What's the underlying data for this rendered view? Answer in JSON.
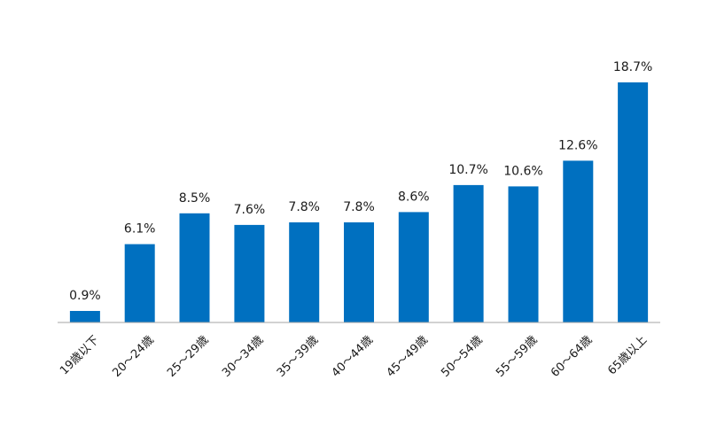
{
  "chart_data": {
    "type": "bar",
    "title": "",
    "xlabel": "",
    "ylabel": "",
    "categories": [
      "19歳以下",
      "20～24歳",
      "25～29歳",
      "30～34歳",
      "35～39歳",
      "40～44歳",
      "45～49歳",
      "50～54歳",
      "55～59歳",
      "60～64歳",
      "65歳以上"
    ],
    "values": [
      0.9,
      6.1,
      8.5,
      7.6,
      7.8,
      7.8,
      8.6,
      10.7,
      10.6,
      12.6,
      18.7
    ],
    "value_labels": [
      "0.9%",
      "6.1%",
      "8.5%",
      "7.6%",
      "7.8%",
      "7.8%",
      "8.6%",
      "10.7%",
      "10.6%",
      "12.6%",
      "18.7%"
    ],
    "ylim": [
      0,
      18.7
    ],
    "grid": false,
    "legend": "none",
    "bar_color": "#0070C0",
    "axis_color": "#a6a6a6"
  }
}
